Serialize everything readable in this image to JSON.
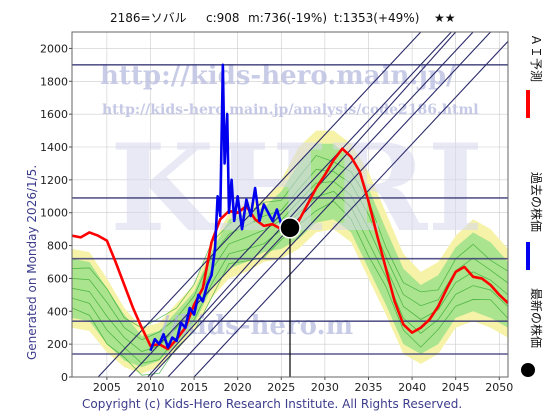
{
  "header": {
    "code_name": "2186=ソバル",
    "current": "c:908",
    "middle": "m:736(-19%)",
    "target": "t:1353(+49%)",
    "stars": "★★"
  },
  "watermarks": {
    "url_main": "http://kids-hero.main.jp/",
    "url_analysis": "http://kids-hero.main.jp/analysis/code2186.html",
    "big": "KHRI",
    "bottom": "//kids-hero.m"
  },
  "side_label": "Generated on Monday 2026/1/5.",
  "footer": "Copyright (c) Kids-Hero Research Institute. All Rights Reserved.",
  "legend": [
    {
      "label": "ＡＩ予測",
      "color": "#ff0000",
      "type": "line"
    },
    {
      "label": "過去の株価",
      "color": "#0000ee",
      "type": "line"
    },
    {
      "label": "最新の株価",
      "color": "#000000",
      "type": "dot"
    }
  ],
  "chart_data": {
    "type": "line",
    "xlim": [
      2001,
      2051
    ],
    "ylim": [
      0,
      2100
    ],
    "xticks": [
      2005,
      2010,
      2015,
      2020,
      2025,
      2030,
      2035,
      2040,
      2045,
      2050
    ],
    "yticks": [
      0,
      200,
      400,
      600,
      800,
      1000,
      1200,
      1400,
      1600,
      1800,
      2000
    ],
    "hlines": [
      140,
      340,
      720,
      1090,
      1900
    ],
    "latest": {
      "x": 2026.0,
      "y": 908
    },
    "series": [
      {
        "name": "過去の株価",
        "color": "#0000ee",
        "points": [
          [
            2010.0,
            160
          ],
          [
            2010.5,
            230
          ],
          [
            2011,
            200
          ],
          [
            2011.5,
            260
          ],
          [
            2012,
            180
          ],
          [
            2012.5,
            240
          ],
          [
            2013,
            220
          ],
          [
            2013.5,
            330
          ],
          [
            2014,
            300
          ],
          [
            2014.5,
            420
          ],
          [
            2015,
            380
          ],
          [
            2015.5,
            500
          ],
          [
            2016,
            460
          ],
          [
            2016.5,
            560
          ],
          [
            2017,
            620
          ],
          [
            2017.4,
            780
          ],
          [
            2017.7,
            1100
          ],
          [
            2018,
            980
          ],
          [
            2018.3,
            1900
          ],
          [
            2018.5,
            1300
          ],
          [
            2018.8,
            1600
          ],
          [
            2019,
            1000
          ],
          [
            2019.3,
            1200
          ],
          [
            2019.6,
            950
          ],
          [
            2020,
            1100
          ],
          [
            2020.5,
            900
          ],
          [
            2021,
            1080
          ],
          [
            2021.5,
            980
          ],
          [
            2022,
            1150
          ],
          [
            2022.5,
            950
          ],
          [
            2023,
            1050
          ],
          [
            2023.5,
            1000
          ],
          [
            2024,
            950
          ],
          [
            2024.5,
            1020
          ],
          [
            2025,
            930
          ],
          [
            2025.5,
            960
          ],
          [
            2026,
            908
          ]
        ]
      },
      {
        "name": "ＡＩ予測",
        "color": "#ff0000",
        "points": [
          [
            2001,
            860
          ],
          [
            2002,
            850
          ],
          [
            2003,
            880
          ],
          [
            2004,
            860
          ],
          [
            2005,
            830
          ],
          [
            2006,
            700
          ],
          [
            2007,
            560
          ],
          [
            2008,
            420
          ],
          [
            2009,
            300
          ],
          [
            2010,
            190
          ],
          [
            2011,
            200
          ],
          [
            2012,
            170
          ],
          [
            2013,
            230
          ],
          [
            2014,
            300
          ],
          [
            2015,
            440
          ],
          [
            2016,
            540
          ],
          [
            2017,
            820
          ],
          [
            2018,
            960
          ],
          [
            2019,
            1010
          ],
          [
            2020,
            1000
          ],
          [
            2021,
            1040
          ],
          [
            2022,
            960
          ],
          [
            2023,
            920
          ],
          [
            2024,
            930
          ],
          [
            2025,
            900
          ],
          [
            2026,
            880
          ],
          [
            2027,
            950
          ],
          [
            2028,
            1050
          ],
          [
            2029,
            1150
          ],
          [
            2030,
            1230
          ],
          [
            2031,
            1320
          ],
          [
            2032,
            1390
          ],
          [
            2033,
            1340
          ],
          [
            2034,
            1250
          ],
          [
            2035,
            1070
          ],
          [
            2036,
            860
          ],
          [
            2037,
            660
          ],
          [
            2038,
            460
          ],
          [
            2039,
            320
          ],
          [
            2040,
            270
          ],
          [
            2041,
            300
          ],
          [
            2042,
            350
          ],
          [
            2043,
            430
          ],
          [
            2044,
            540
          ],
          [
            2045,
            640
          ],
          [
            2046,
            670
          ],
          [
            2047,
            610
          ],
          [
            2048,
            600
          ],
          [
            2049,
            560
          ],
          [
            2050,
            500
          ],
          [
            2051,
            450
          ]
        ]
      }
    ],
    "band_outer": {
      "upper": [
        [
          2001,
          780
        ],
        [
          2003,
          760
        ],
        [
          2005,
          600
        ],
        [
          2007,
          420
        ],
        [
          2009,
          300
        ],
        [
          2011,
          330
        ],
        [
          2013,
          450
        ],
        [
          2015,
          560
        ],
        [
          2017,
          800
        ],
        [
          2019,
          1000
        ],
        [
          2021,
          1060
        ],
        [
          2023,
          1080
        ],
        [
          2025,
          1200
        ],
        [
          2027,
          1400
        ],
        [
          2029,
          1500
        ],
        [
          2031,
          1500
        ],
        [
          2033,
          1420
        ],
        [
          2035,
          1250
        ],
        [
          2037,
          1000
        ],
        [
          2039,
          750
        ],
        [
          2041,
          640
        ],
        [
          2043,
          700
        ],
        [
          2045,
          860
        ],
        [
          2047,
          960
        ],
        [
          2049,
          900
        ],
        [
          2051,
          780
        ]
      ],
      "lower": [
        [
          2001,
          300
        ],
        [
          2003,
          280
        ],
        [
          2005,
          150
        ],
        [
          2007,
          60
        ],
        [
          2009,
          20
        ],
        [
          2011,
          60
        ],
        [
          2013,
          160
        ],
        [
          2015,
          280
        ],
        [
          2017,
          480
        ],
        [
          2019,
          600
        ],
        [
          2021,
          640
        ],
        [
          2023,
          700
        ],
        [
          2025,
          720
        ],
        [
          2027,
          780
        ],
        [
          2029,
          880
        ],
        [
          2031,
          900
        ],
        [
          2033,
          820
        ],
        [
          2035,
          600
        ],
        [
          2037,
          380
        ],
        [
          2039,
          140
        ],
        [
          2041,
          80
        ],
        [
          2043,
          140
        ],
        [
          2045,
          300
        ],
        [
          2047,
          340
        ],
        [
          2049,
          300
        ],
        [
          2051,
          240
        ]
      ]
    },
    "band_green": {
      "upper": [
        [
          2001,
          720
        ],
        [
          2003,
          700
        ],
        [
          2005,
          540
        ],
        [
          2007,
          380
        ],
        [
          2009,
          250
        ],
        [
          2011,
          280
        ],
        [
          2013,
          400
        ],
        [
          2015,
          520
        ],
        [
          2017,
          760
        ],
        [
          2019,
          960
        ],
        [
          2021,
          1000
        ],
        [
          2023,
          1030
        ],
        [
          2025,
          1130
        ],
        [
          2027,
          1300
        ],
        [
          2029,
          1420
        ],
        [
          2031,
          1420
        ],
        [
          2033,
          1330
        ],
        [
          2035,
          1150
        ],
        [
          2037,
          900
        ],
        [
          2039,
          660
        ],
        [
          2041,
          560
        ],
        [
          2043,
          620
        ],
        [
          2045,
          790
        ],
        [
          2047,
          880
        ],
        [
          2049,
          820
        ],
        [
          2051,
          700
        ]
      ],
      "lower": [
        [
          2001,
          360
        ],
        [
          2003,
          340
        ],
        [
          2005,
          200
        ],
        [
          2007,
          100
        ],
        [
          2009,
          60
        ],
        [
          2011,
          100
        ],
        [
          2013,
          200
        ],
        [
          2015,
          320
        ],
        [
          2017,
          540
        ],
        [
          2019,
          660
        ],
        [
          2021,
          700
        ],
        [
          2023,
          760
        ],
        [
          2025,
          780
        ],
        [
          2027,
          840
        ],
        [
          2029,
          940
        ],
        [
          2031,
          960
        ],
        [
          2033,
          880
        ],
        [
          2035,
          660
        ],
        [
          2037,
          440
        ],
        [
          2039,
          200
        ],
        [
          2041,
          140
        ],
        [
          2043,
          200
        ],
        [
          2045,
          360
        ],
        [
          2047,
          400
        ],
        [
          2049,
          360
        ],
        [
          2051,
          300
        ]
      ]
    },
    "diagonals": [
      {
        "x": [
          2004.0,
          2041.0
        ],
        "y": [
          0,
          2100
        ]
      },
      {
        "x": [
          2007.5,
          2044.5
        ],
        "y": [
          0,
          2100
        ]
      },
      {
        "x": [
          2010.0,
          2047.0
        ],
        "y": [
          0,
          2100
        ]
      },
      {
        "x": [
          2012.0,
          2049.0
        ],
        "y": [
          0,
          2100
        ]
      },
      {
        "x": [
          2015.0,
          2052.0
        ],
        "y": [
          0,
          2100
        ]
      },
      {
        "x": [
          2008.0,
          2045.0
        ],
        "y": [
          -100,
          2100
        ]
      }
    ]
  }
}
